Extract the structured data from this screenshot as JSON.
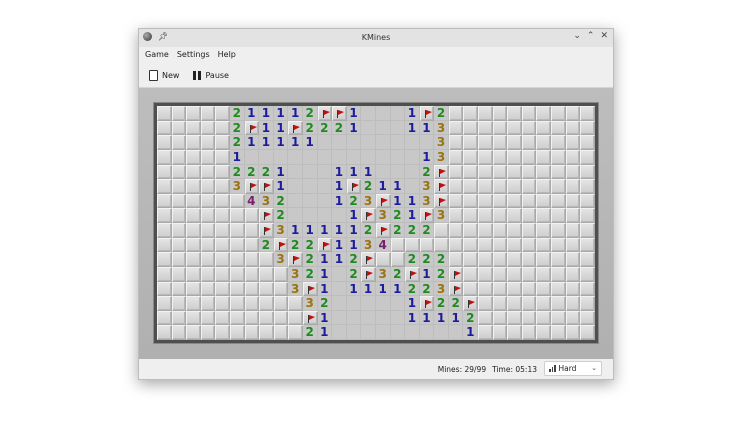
{
  "window": {
    "title": "KMines"
  },
  "titlebar_icons": {
    "app": "kmines-icon",
    "pin": "pin-icon",
    "minimize": "chevron-down-icon",
    "maximize": "chevron-up-icon",
    "close": "close-icon"
  },
  "menu": {
    "items": [
      "Game",
      "Settings",
      "Help"
    ]
  },
  "toolbar": {
    "new_label": "New",
    "pause_label": "Pause"
  },
  "board": {
    "columns": 30,
    "rows_count": 16,
    "legend": {
      "#": "covered",
      ".": "revealed-empty",
      "F": "flagged",
      "1-8": "adjacent mine count"
    },
    "number_colors": {
      "1": "#1c1c9c",
      "2": "#1f8a1f",
      "3": "#9a7410",
      "4": "#7a1f6e"
    },
    "rows": [
      "#####211112FF1...1F2##########",
      "#####2F11F2221...113##########",
      "#####211111........3##########",
      "#####1............13##########",
      "#####2221...111...2F##########",
      "#####3FF1...1F211.3F##########",
      "######432...123F113F##########",
      "#######F2....1F321F3##########",
      "#######F3111112F222###########",
      "#######2F22F1134##############",
      "########3F2112F##222##########",
      "#########321.2F32F12F#########",
      "#########3F1.1111223F#########",
      "##########32.....1F22F########",
      "##########F1.....11112########",
      "##########21.........1########"
    ]
  },
  "status": {
    "mines": "Mines: 29/99",
    "time": "Time: 05:13",
    "difficulty": "Hard"
  }
}
